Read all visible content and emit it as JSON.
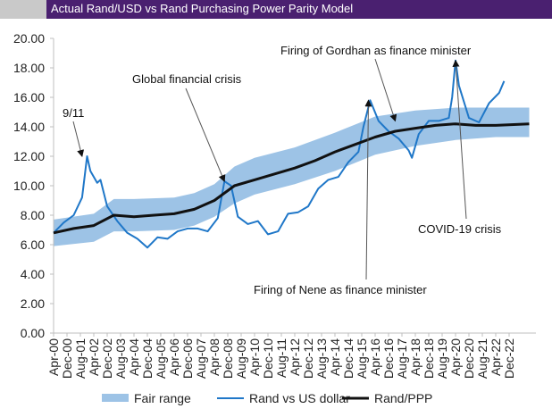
{
  "title": "Actual Rand/USD vs Rand Purchasing Power Parity Model",
  "colors": {
    "title_bg": "#4a2070",
    "band": "#9dc3e6",
    "rand": "#1f77c8",
    "ppp": "#111111",
    "axis": "#bfbfbf"
  },
  "chart_data": {
    "type": "line",
    "ylim": [
      0,
      20
    ],
    "xlim": [
      "Apr-00",
      "Apr-24"
    ],
    "yticks": [
      "0.00",
      "2.00",
      "4.00",
      "6.00",
      "8.00",
      "10.00",
      "12.00",
      "14.00",
      "16.00",
      "18.00",
      "20.00"
    ],
    "xticks": [
      "Apr-00",
      "Dec-00",
      "Aug-01",
      "Apr-02",
      "Dec-02",
      "Aug-03",
      "Apr-04",
      "Dec-04",
      "Aug-05",
      "Apr-06",
      "Dec-06",
      "Aug-07",
      "Apr-08",
      "Dec-08",
      "Aug-09",
      "Apr-10",
      "Dec-10",
      "Aug-11",
      "Apr-12",
      "Dec-12",
      "Aug-13",
      "Apr-14",
      "Dec-14",
      "Aug-15",
      "Apr-16",
      "Dec-16",
      "Aug-17",
      "Apr-18",
      "Dec-18",
      "Aug-19",
      "Apr-20",
      "Dec-20",
      "Aug-21",
      "Apr-22",
      "Dec-22"
    ],
    "grid": false,
    "legend_position": "bottom",
    "series": [
      {
        "name": "Fair range",
        "kind": "band",
        "x": [
          "Apr-00",
          "Apr-02",
          "Apr-03",
          "Apr-04",
          "Apr-06",
          "Apr-07",
          "Apr-08",
          "Apr-09",
          "Apr-10",
          "Apr-12",
          "Apr-14",
          "Apr-16",
          "Apr-18",
          "Apr-20",
          "Apr-22",
          "Dec-23"
        ],
        "low": [
          5.9,
          6.2,
          6.9,
          6.9,
          7.0,
          7.3,
          7.9,
          8.8,
          9.4,
          10.1,
          11.0,
          12.1,
          12.7,
          13.1,
          13.3,
          13.3
        ],
        "high": [
          7.7,
          8.1,
          9.1,
          9.1,
          9.2,
          9.5,
          10.1,
          11.3,
          11.9,
          12.6,
          13.6,
          14.7,
          15.1,
          15.3,
          15.3,
          15.3
        ]
      },
      {
        "name": "Rand vs US dollar",
        "kind": "line",
        "x": [
          "Apr-00",
          "Oct-00",
          "Apr-01",
          "Sep-01",
          "Dec-01",
          "Feb-02",
          "Jun-02",
          "Aug-02",
          "Dec-02",
          "Jun-03",
          "Dec-03",
          "Jun-04",
          "Dec-04",
          "Jun-05",
          "Dec-05",
          "Jun-06",
          "Dec-06",
          "Jun-07",
          "Dec-07",
          "Jun-08",
          "Oct-08",
          "Feb-09",
          "Jun-09",
          "Dec-09",
          "Jun-10",
          "Dec-10",
          "Jun-11",
          "Dec-11",
          "Jun-12",
          "Dec-12",
          "Jun-13",
          "Dec-13",
          "Jun-14",
          "Dec-14",
          "Jun-15",
          "Sep-15",
          "Jan-16",
          "Jun-16",
          "Dec-16",
          "Jun-17",
          "Dec-17",
          "Feb-18",
          "Jun-18",
          "Dec-18",
          "Jun-19",
          "Dec-19",
          "Feb-20",
          "Apr-20",
          "Jun-20",
          "Dec-20",
          "Jun-21",
          "Dec-21",
          "Jun-22",
          "Sep-22"
        ],
        "y": [
          6.8,
          7.5,
          8.0,
          9.2,
          12.0,
          11.0,
          10.2,
          10.4,
          8.6,
          7.6,
          6.8,
          6.4,
          5.8,
          6.5,
          6.4,
          6.9,
          7.1,
          7.1,
          6.9,
          7.8,
          10.3,
          10.0,
          7.9,
          7.4,
          7.6,
          6.7,
          6.9,
          8.1,
          8.2,
          8.6,
          9.8,
          10.4,
          10.6,
          11.6,
          12.3,
          14.0,
          15.8,
          14.4,
          13.7,
          13.2,
          12.4,
          11.9,
          13.5,
          14.4,
          14.4,
          14.6,
          16.0,
          18.5,
          16.8,
          14.6,
          14.3,
          15.6,
          16.3,
          17.1
        ]
      },
      {
        "name": "Rand/PPP",
        "kind": "line",
        "x": [
          "Apr-00",
          "Apr-01",
          "Apr-02",
          "Apr-03",
          "Apr-04",
          "Apr-05",
          "Apr-06",
          "Apr-07",
          "Apr-08",
          "Apr-09",
          "Apr-10",
          "Apr-11",
          "Apr-12",
          "Apr-13",
          "Apr-14",
          "Apr-15",
          "Apr-16",
          "Apr-17",
          "Apr-18",
          "Apr-19",
          "Apr-20",
          "Apr-21",
          "Apr-22",
          "Dec-23"
        ],
        "y": [
          6.8,
          7.1,
          7.3,
          8.0,
          7.9,
          8.0,
          8.1,
          8.4,
          9.0,
          10.0,
          10.4,
          10.8,
          11.2,
          11.7,
          12.3,
          12.8,
          13.3,
          13.7,
          13.9,
          14.1,
          14.2,
          14.1,
          14.1,
          14.2
        ]
      }
    ],
    "annotations": [
      {
        "text": "9/11",
        "x": "Sep-01",
        "y": 12.0
      },
      {
        "text": "Global financial crisis",
        "x": "Oct-08",
        "y": 10.3
      },
      {
        "text": "Firing of Gordhan as finance minister",
        "x": "Apr-17",
        "y": 14.4
      },
      {
        "text": "Firing of Nene as finance minister",
        "x": "Dec-15",
        "y": 15.8
      },
      {
        "text": "COVID-19 crisis",
        "x": "Apr-20",
        "y": 18.5
      }
    ]
  }
}
